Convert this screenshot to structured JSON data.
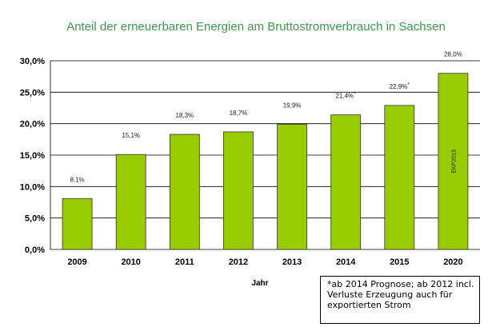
{
  "chart_data": {
    "type": "bar",
    "title": "Anteil der erneuerbaren Energien am Bruttostromverbrauch in Sachsen",
    "xlabel": "Jahr",
    "ylabel": "",
    "categories": [
      "2009",
      "2010",
      "2011",
      "2012",
      "2013",
      "2014",
      "2015",
      "2020"
    ],
    "values": [
      8.1,
      15.1,
      18.3,
      18.7,
      19.9,
      21.4,
      22.9,
      28.0
    ],
    "data_labels": [
      "8,1%",
      "15,1%",
      "18,3%",
      "18,7%",
      "19,9%",
      "21,4%",
      "22,9%",
      "28,0%"
    ],
    "label_marks": [
      "",
      "",
      "",
      "",
      "",
      "*",
      "*",
      ""
    ],
    "ylim": [
      0,
      30
    ],
    "yticks": [
      "0,0%",
      "5,0%",
      "10,0%",
      "15,0%",
      "20,0%",
      "25,0%",
      "30,0%"
    ],
    "bar_color": "#99cc00",
    "grid": true,
    "annotations": [
      {
        "category": "2020",
        "text": "EKP2013"
      }
    ]
  },
  "note": {
    "lines": [
      "*ab 2014 Prognose;  ab 2012 incl.",
      "Verluste Erzeugung auch für",
      "exportierten Strom"
    ]
  }
}
